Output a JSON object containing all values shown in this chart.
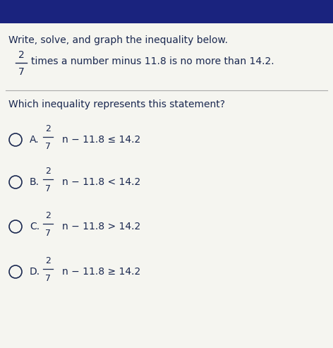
{
  "header_color": "#1a237e",
  "bg_color": "#dce0e8",
  "content_bg": "#f5f5f0",
  "text_color": "#1a2850",
  "title": "Write, solve, and graph the inequality below.",
  "question": "Which inequality represents this statement?",
  "options": [
    {
      "label": "A.",
      "symbol": "≤"
    },
    {
      "label": "B.",
      "symbol": "<"
    },
    {
      "label": "C.",
      "symbol": ">"
    },
    {
      "label": "D.",
      "symbol": "≥"
    }
  ],
  "figsize": [
    4.72,
    4.93
  ],
  "dpi": 100
}
